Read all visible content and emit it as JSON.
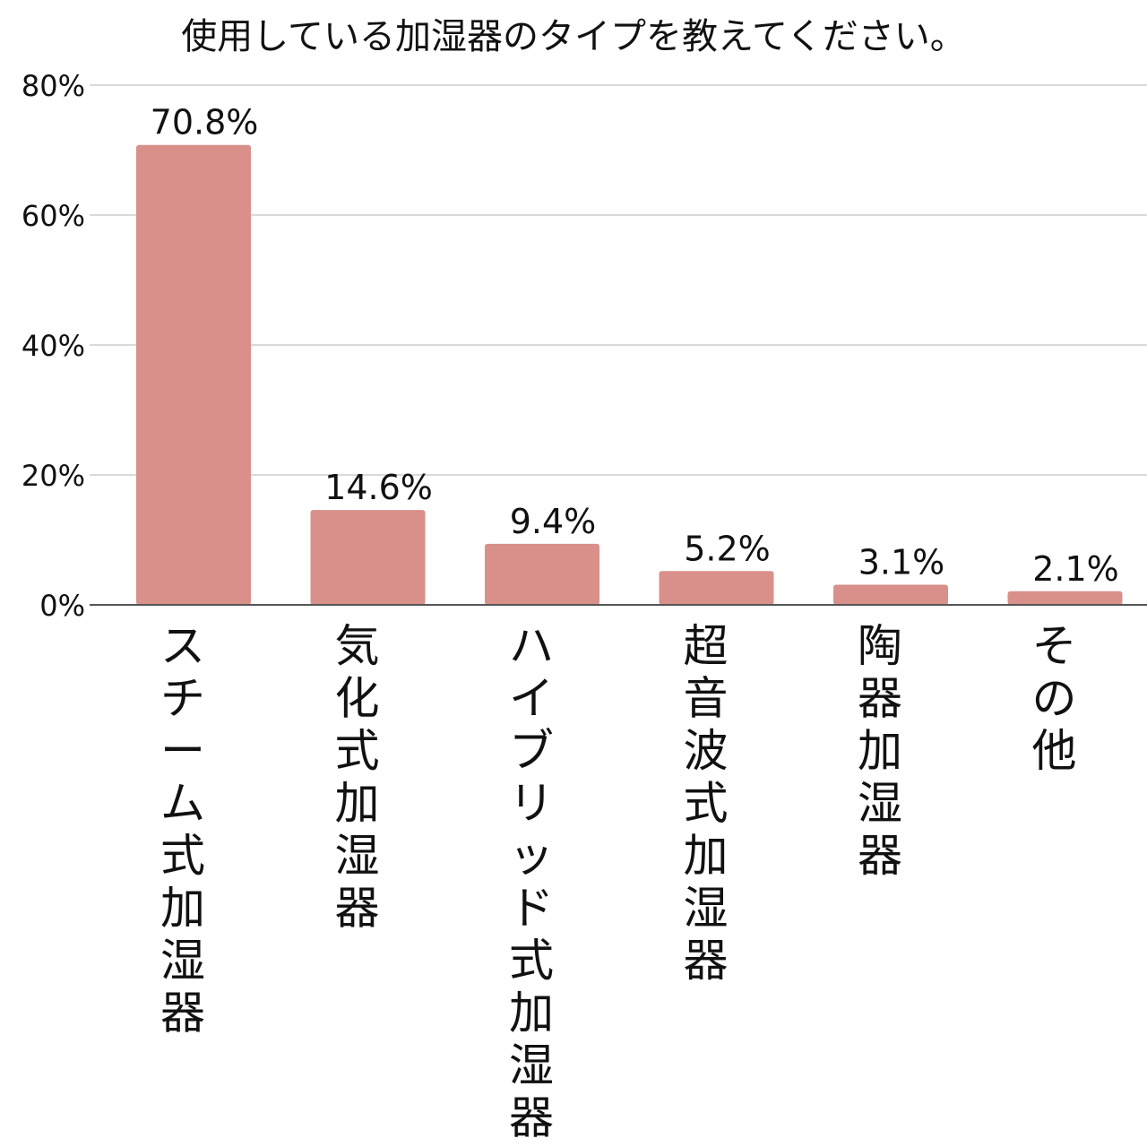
{
  "chart_data": {
    "type": "bar",
    "title": "使用している加湿器のタイプを教えてください。",
    "xlabel": "",
    "ylabel": "",
    "categories": [
      "スチーム式加湿器",
      "気化式加湿器",
      "ハイブリッド式加湿器",
      "超音波式加湿器",
      "陶器加湿器",
      "その他"
    ],
    "values": [
      70.8,
      14.6,
      9.4,
      5.2,
      3.1,
      2.1
    ],
    "value_labels": [
      "70.8%",
      "14.6%",
      "9.4%",
      "5.2%",
      "3.1%",
      "2.1%"
    ],
    "ylim": [
      0,
      80
    ],
    "yticks": [
      0,
      20,
      40,
      60,
      80
    ],
    "ytick_labels": [
      "0%",
      "20%",
      "40%",
      "60%",
      "80%"
    ],
    "grid": true,
    "legend": "none",
    "bar_color": "#d9908a",
    "grid_color": "#d9d9d9",
    "axis_color": "#555555"
  }
}
